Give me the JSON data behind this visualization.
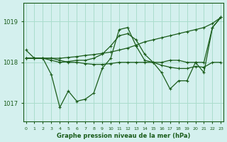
{
  "xlabel": "Graphe pression niveau de la mer (hPa)",
  "background_color": "#d4f0ee",
  "grid_color": "#aaddcc",
  "line_color": "#1a5c1a",
  "xlim": [
    -0.3,
    23.3
  ],
  "ylim": [
    1016.55,
    1019.45
  ],
  "yticks": [
    1017,
    1018,
    1019
  ],
  "xticks": [
    0,
    1,
    2,
    3,
    4,
    5,
    6,
    7,
    8,
    9,
    10,
    11,
    12,
    13,
    14,
    15,
    16,
    17,
    18,
    19,
    20,
    21,
    22,
    23
  ],
  "series_zigzag_y": [
    1018.3,
    1018.1,
    1018.1,
    1017.7,
    1016.9,
    1017.3,
    1017.05,
    1017.1,
    1017.25,
    1017.85,
    1018.1,
    1018.8,
    1018.85,
    1018.4,
    1018.05,
    1018.0,
    1017.75,
    1017.35,
    1017.55,
    1017.55,
    1018.0,
    1017.75,
    1018.85,
    1019.1
  ],
  "series_diagonal_y": [
    1018.1,
    1018.1,
    1018.1,
    1018.1,
    1018.1,
    1018.12,
    1018.14,
    1018.17,
    1018.19,
    1018.22,
    1018.25,
    1018.3,
    1018.35,
    1018.42,
    1018.5,
    1018.55,
    1018.6,
    1018.65,
    1018.7,
    1018.75,
    1018.8,
    1018.85,
    1018.95,
    1019.1
  ],
  "series_hump_y": [
    1018.1,
    1018.1,
    1018.1,
    1018.05,
    1018.0,
    1018.02,
    1018.05,
    1018.05,
    1018.1,
    1018.2,
    1018.4,
    1018.65,
    1018.7,
    1018.55,
    1018.2,
    1018.0,
    1018.0,
    1018.05,
    1018.05,
    1018.0,
    1018.0,
    1018.0,
    1018.85,
    1019.1
  ],
  "series_flat_y": [
    1018.1,
    1018.1,
    1018.1,
    1018.1,
    1018.05,
    1018.0,
    1018.0,
    1017.97,
    1017.95,
    1017.95,
    1017.97,
    1018.0,
    1018.0,
    1018.0,
    1018.0,
    1018.0,
    1017.93,
    1017.88,
    1017.85,
    1017.85,
    1017.9,
    1017.88,
    1018.0,
    1018.0
  ]
}
